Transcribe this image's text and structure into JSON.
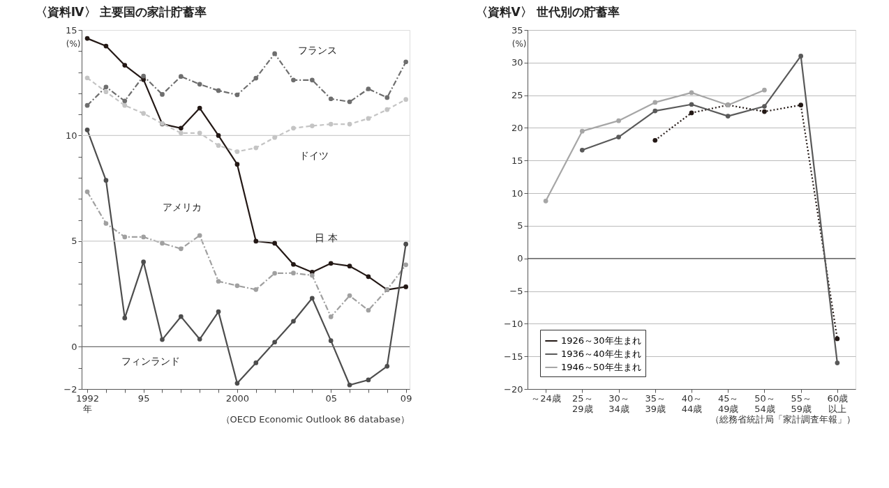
{
  "chart_data": [
    {
      "type": "line",
      "title": "〈資料Ⅳ〉 主要国の家計貯蓄率",
      "ylabel": "(%)",
      "x": [
        1992,
        1993,
        1994,
        1995,
        1996,
        1997,
        1998,
        1999,
        2000,
        2001,
        2002,
        2003,
        2004,
        2005,
        2006,
        2007,
        2008,
        2009
      ],
      "series": [
        {
          "name": "日 本",
          "color": "#231815",
          "line_style": "solid",
          "values": [
            14.6,
            14.24,
            13.33,
            12.65,
            10.55,
            10.35,
            11.3,
            10.0,
            8.64,
            5.0,
            4.9,
            3.9,
            3.53,
            3.95,
            3.82,
            3.32,
            2.7,
            2.84
          ]
        },
        {
          "name": "フランス",
          "color": "#6e6e6e",
          "line_style": "dashdot",
          "values": [
            11.43,
            12.3,
            11.64,
            12.82,
            11.95,
            12.8,
            12.43,
            12.13,
            11.93,
            12.72,
            13.88,
            12.63,
            12.63,
            11.74,
            11.6,
            12.21,
            11.8,
            13.49
          ]
        },
        {
          "name": "ドイツ",
          "color": "#c4c4c4",
          "line_style": "dashed",
          "values": [
            12.73,
            12.07,
            11.43,
            11.05,
            10.57,
            10.12,
            10.12,
            9.53,
            9.24,
            9.42,
            9.91,
            10.35,
            10.46,
            10.54,
            10.54,
            10.81,
            11.23,
            11.71
          ]
        },
        {
          "name": "アメリカ",
          "color": "#a0a0a0",
          "line_style": "dashdot",
          "values": [
            7.34,
            5.84,
            5.2,
            5.2,
            4.9,
            4.64,
            5.27,
            3.1,
            2.89,
            2.71,
            3.48,
            3.49,
            3.38,
            1.42,
            2.42,
            1.73,
            2.7,
            3.88
          ]
        },
        {
          "name": "フィンランド",
          "color": "#4d4d4d",
          "line_style": "solid",
          "values": [
            10.27,
            7.88,
            1.36,
            4.02,
            0.34,
            1.43,
            0.36,
            1.66,
            -1.73,
            -0.76,
            0.22,
            1.21,
            2.3,
            0.29,
            -1.81,
            -1.57,
            -0.92,
            4.86
          ]
        }
      ],
      "marker": "circle",
      "legend": false,
      "grid": false,
      "xlim": [
        1991.7,
        2009.2
      ],
      "xticks": [
        {
          "value": 1992,
          "label": "1992\n年"
        },
        {
          "value": 1993,
          "label": null
        },
        {
          "value": 1994,
          "label": null
        },
        {
          "value": 1995,
          "label": "95"
        },
        {
          "value": 1996,
          "label": null
        },
        {
          "value": 1997,
          "label": null
        },
        {
          "value": 1998,
          "label": null
        },
        {
          "value": 1999,
          "label": null
        },
        2000,
        {
          "value": 2001,
          "label": null
        },
        {
          "value": 2002,
          "label": null
        },
        {
          "value": 2003,
          "label": null
        },
        {
          "value": 2004,
          "label": null
        },
        {
          "value": 2005,
          "label": "05"
        },
        {
          "value": 2006,
          "label": null
        },
        {
          "value": 2007,
          "label": null
        },
        {
          "value": 2008,
          "label": null
        },
        {
          "value": 2009,
          "label": "09"
        }
      ],
      "ylim": [
        -2,
        15
      ],
      "yticks": [
        -2,
        {
          "value": -1,
          "label": null
        },
        0,
        {
          "value": 1,
          "label": null
        },
        {
          "value": 2,
          "label": null
        },
        {
          "value": 3,
          "label": null
        },
        {
          "value": 4,
          "label": null
        },
        5,
        {
          "value": 6,
          "label": null
        },
        {
          "value": 7,
          "label": null
        },
        {
          "value": 8,
          "label": null
        },
        {
          "value": 9,
          "label": null
        },
        10,
        {
          "value": 11,
          "label": null
        },
        {
          "value": 12,
          "label": null
        },
        {
          "value": 13,
          "label": null
        },
        {
          "value": 14,
          "label": null
        },
        15
      ],
      "ref_lines": [
        {
          "axis": "y",
          "value": 0,
          "color": "#6e6e6e"
        },
        {
          "axis": "y",
          "value": 5,
          "color": "#cccccc"
        },
        {
          "axis": "y",
          "value": 10,
          "color": "#cccccc"
        }
      ],
      "annotations": [
        "（OECD Economic Outlook 86 database）"
      ]
    },
    {
      "type": "line",
      "title": "〈資料Ⅴ〉 世代別の貯蓄率",
      "ylabel": "(%)",
      "categories": [
        "～24歳",
        "25～29歳",
        "30～34歳",
        "35～39歳",
        "40～44歳",
        "45～49歳",
        "50～54歳",
        "55～59歳",
        "60歳以上"
      ],
      "series": [
        {
          "name": "1926～30年生まれ",
          "color": "#231815",
          "line_style": "dotted",
          "values": [
            null,
            null,
            null,
            18.1,
            22.3,
            23.5,
            22.5,
            23.5,
            -12.3
          ]
        },
        {
          "name": "1936～40年生まれ",
          "color": "#595959",
          "line_style": "solid",
          "values": [
            null,
            16.6,
            18.6,
            22.6,
            23.6,
            21.8,
            23.3,
            31.0,
            -16.0
          ]
        },
        {
          "name": "1946～50年生まれ",
          "color": "#a6a6a6",
          "line_style": "solid",
          "values": [
            8.8,
            19.5,
            21.1,
            23.9,
            25.4,
            23.5,
            25.8,
            null,
            null
          ]
        }
      ],
      "marker": "circle",
      "legend": "bottom left",
      "grid": "y",
      "ylim": [
        -20,
        35
      ],
      "yticks": [
        -20,
        -15,
        -10,
        -5,
        0,
        5,
        10,
        15,
        20,
        25,
        30,
        35
      ],
      "ref_lines": [
        {
          "axis": "y",
          "value": 0,
          "color": "#3c3c3c"
        }
      ],
      "annotations": [
        "（総務省統計局「家計調査年報」）"
      ]
    }
  ]
}
